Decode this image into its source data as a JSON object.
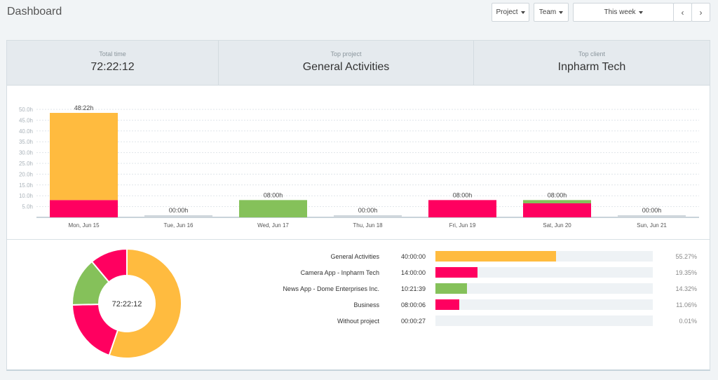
{
  "header": {
    "title": "Dashboard",
    "project_label": "Project",
    "team_label": "Team",
    "range_label": "This week"
  },
  "stats": [
    {
      "label": "Total time",
      "value": "72:22:12"
    },
    {
      "label": "Top project",
      "value": "General Activities"
    },
    {
      "label": "Top client",
      "value": "Inpharm Tech"
    }
  ],
  "colors": {
    "orange": "#ffbb3f",
    "pink": "#ff0060",
    "green": "#85c15a",
    "grey": "#cfd6dc"
  },
  "chart_data": [
    {
      "type": "bar",
      "stacked": true,
      "categories": [
        "Mon, Jun 15",
        "Tue, Jun 16",
        "Wed, Jun 17",
        "Thu, Jun 18",
        "Fri, Jun 19",
        "Sat, Jun 20",
        "Sun, Jun 21"
      ],
      "totals": [
        "48:22h",
        "00:00h",
        "08:00h",
        "00:00h",
        "08:00h",
        "08:00h",
        "00:00h"
      ],
      "series": [
        {
          "values": [
            8.0,
            0,
            0,
            0,
            8.0,
            6.5,
            0
          ],
          "color": "#ff0060"
        },
        {
          "values": [
            0,
            0,
            8.0,
            0,
            0,
            1.5,
            0
          ],
          "color": "#85c15a"
        },
        {
          "values": [
            40.37,
            0,
            0,
            0,
            0,
            0,
            0
          ],
          "color": "#ffbb3f"
        }
      ],
      "yticks": [
        "5.0h",
        "10.0h",
        "15.0h",
        "20.0h",
        "25.0h",
        "30.0h",
        "35.0h",
        "40.0h",
        "45.0h",
        "50.0h"
      ],
      "ylim": [
        0,
        50
      ],
      "grid": true
    },
    {
      "type": "pie",
      "donut": true,
      "center_label": "72:22:12",
      "slices": [
        {
          "name": "General Activities",
          "value": 55.27,
          "color": "#ffbb3f"
        },
        {
          "name": "Camera App - Inpharm Tech",
          "value": 19.35,
          "color": "#ff0060"
        },
        {
          "name": "News App - Dome Enterprises Inc.",
          "value": 14.32,
          "color": "#85c15a"
        },
        {
          "name": "Business",
          "value": 11.06,
          "color": "#ff0060"
        },
        {
          "name": "Without project",
          "value": 0.01,
          "color": "#cfd6dc"
        }
      ]
    }
  ],
  "projects": [
    {
      "name": "General Activities",
      "time": "40:00:00",
      "pct": "55.27%",
      "share": 0.5527,
      "color": "#ffbb3f"
    },
    {
      "name": "Camera App - Inpharm Tech",
      "time": "14:00:00",
      "pct": "19.35%",
      "share": 0.1935,
      "color": "#ff0060"
    },
    {
      "name": "News App - Dome Enterprises Inc.",
      "time": "10:21:39",
      "pct": "14.32%",
      "share": 0.1432,
      "color": "#85c15a"
    },
    {
      "name": "Business",
      "time": "08:00:06",
      "pct": "11.06%",
      "share": 0.1106,
      "color": "#ff0060"
    },
    {
      "name": "Without project",
      "time": "00:00:27",
      "pct": "0.01%",
      "share": 0.0001,
      "color": "#cfd6dc"
    }
  ]
}
